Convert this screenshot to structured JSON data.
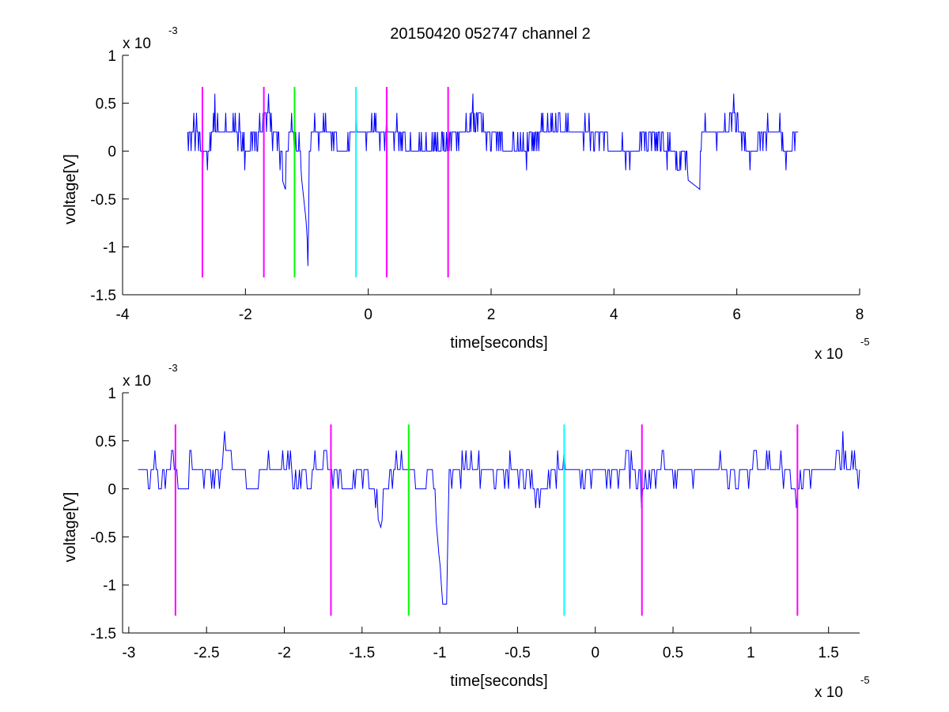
{
  "figure": {
    "title": "20150420 052747 channel 2",
    "background": "#ffffff"
  },
  "chart_data": [
    {
      "type": "line",
      "title": "20150420 052747 channel 2",
      "xlabel": "time[seconds]",
      "ylabel": "voltage[V]",
      "x_multiplier_base": "x 10",
      "x_multiplier_exp": "-5",
      "y_multiplier_base": "x 10",
      "y_multiplier_exp": "-3",
      "xlim": [
        -4,
        8
      ],
      "ylim": [
        -1.5,
        1
      ],
      "xticks": [
        -4,
        -2,
        0,
        2,
        4,
        6,
        8
      ],
      "xtick_labels": [
        "-4",
        "-2",
        "0",
        "2",
        "4",
        "6",
        "8"
      ],
      "yticks": [
        -1.5,
        -1,
        -0.5,
        0,
        0.5,
        1
      ],
      "ytick_labels": [
        "-1.5",
        "-1",
        "-0.5",
        "0",
        "0.5",
        "1"
      ],
      "grid": false,
      "series": [
        {
          "color": "#0000ff",
          "x_range": [
            -2.94,
            7.0
          ],
          "noise_levels": [
            0,
            0.2,
            0.4
          ],
          "y_points": [
            [
              -2.94,
              0
            ],
            [
              -2.88,
              0.2
            ],
            [
              -2.8,
              0.4
            ],
            [
              -2.72,
              -0.05
            ],
            [
              -2.62,
              -0.2
            ],
            [
              -2.5,
              0.6
            ],
            [
              -2.4,
              0.2
            ],
            [
              -2.1,
              0.4
            ],
            [
              -2.0,
              -0.1
            ],
            [
              -1.8,
              0.2
            ],
            [
              -1.62,
              0.6
            ],
            [
              -1.5,
              0.2
            ],
            [
              -1.4,
              -0.3
            ],
            [
              -1.35,
              -0.4
            ],
            [
              -1.25,
              0.4
            ],
            [
              -1.1,
              -0.2
            ],
            [
              -1.0,
              -0.8
            ],
            [
              -0.98,
              -1.2
            ],
            [
              -0.96,
              -0.2
            ],
            [
              -0.9,
              0.2
            ],
            [
              -0.7,
              0.4
            ],
            [
              -0.4,
              -0.2
            ],
            [
              -0.2,
              0.4
            ],
            [
              0,
              0.2
            ],
            [
              0.3,
              0.4
            ],
            [
              0.8,
              -0.2
            ],
            [
              1.45,
              0.2
            ],
            [
              1.7,
              0.6
            ],
            [
              2.0,
              0.2
            ],
            [
              2.4,
              -0.2
            ],
            [
              3.0,
              0.4
            ],
            [
              3.6,
              0.2
            ],
            [
              4.2,
              -0.2
            ],
            [
              4.6,
              0.2
            ],
            [
              5.0,
              -0.2
            ],
            [
              5.4,
              -0.4
            ],
            [
              5.43,
              0.2
            ],
            [
              5.8,
              0.2
            ],
            [
              5.95,
              0.6
            ],
            [
              6.1,
              0.2
            ],
            [
              6.18,
              -0.2
            ],
            [
              6.5,
              0.2
            ],
            [
              6.7,
              0.4
            ],
            [
              6.8,
              -0.2
            ],
            [
              7.0,
              0.2
            ]
          ]
        }
      ],
      "vertical_markers": [
        {
          "x": -2.7,
          "color": "#ff00ff"
        },
        {
          "x": -1.7,
          "color": "#ff00ff"
        },
        {
          "x": -1.2,
          "color": "#00ff00"
        },
        {
          "x": -0.2,
          "color": "#00ffff"
        },
        {
          "x": 0.3,
          "color": "#ff00ff"
        },
        {
          "x": 1.3,
          "color": "#ff00ff"
        }
      ],
      "marker_y_range": [
        -1.32,
        0.67
      ]
    },
    {
      "type": "line",
      "title": "",
      "xlabel": "time[seconds]",
      "ylabel": "voltage[V]",
      "x_multiplier_base": "x 10",
      "x_multiplier_exp": "-5",
      "y_multiplier_base": "x 10",
      "y_multiplier_exp": "-3",
      "xlim": [
        -3.04,
        1.7
      ],
      "ylim": [
        -1.5,
        1
      ],
      "xticks": [
        -3,
        -2.5,
        -2,
        -1.5,
        -1,
        -0.5,
        0,
        0.5,
        1,
        1.5
      ],
      "xtick_labels": [
        "-3",
        "-2.5",
        "-2",
        "-1.5",
        "-1",
        "-0.5",
        "0",
        "0.5",
        "1",
        "1.5"
      ],
      "yticks": [
        -1.5,
        -1,
        -0.5,
        0,
        0.5,
        1
      ],
      "ytick_labels": [
        "-1.5",
        "-1",
        "-0.5",
        "0",
        "0.5",
        "1"
      ],
      "grid": false,
      "series": [
        {
          "color": "#0000ff",
          "x_range": [
            -2.94,
            1.7
          ],
          "y_points": [
            [
              -2.94,
              0
            ],
            [
              -2.92,
              0.2
            ],
            [
              -2.9,
              0.05
            ],
            [
              -2.86,
              0.2
            ],
            [
              -2.83,
              0.4
            ],
            [
              -2.8,
              0.0
            ],
            [
              -2.75,
              0.2
            ],
            [
              -2.72,
              0.4
            ],
            [
              -2.67,
              -0.05
            ],
            [
              -2.63,
              -0.2
            ],
            [
              -2.6,
              0.4
            ],
            [
              -2.5,
              0.2
            ],
            [
              -2.43,
              0.0
            ],
            [
              -2.38,
              0.6
            ],
            [
              -2.3,
              0.2
            ],
            [
              -2.2,
              -0.2
            ],
            [
              -2.1,
              0.4
            ],
            [
              -1.95,
              0.2
            ],
            [
              -1.85,
              0.0
            ],
            [
              -1.8,
              0.4
            ],
            [
              -1.7,
              0.2
            ],
            [
              -1.6,
              -0.1
            ],
            [
              -1.5,
              0.2
            ],
            [
              -1.42,
              -0.2
            ],
            [
              -1.38,
              -0.4
            ],
            [
              -1.33,
              0.0
            ],
            [
              -1.25,
              0.4
            ],
            [
              -1.18,
              0.2
            ],
            [
              -1.12,
              -0.2
            ],
            [
              -1.05,
              0.2
            ],
            [
              -1.0,
              -0.8
            ],
            [
              -0.98,
              -1.2
            ],
            [
              -0.96,
              -1.2
            ],
            [
              -0.94,
              0.0
            ],
            [
              -0.88,
              0.2
            ],
            [
              -0.8,
              0.4
            ],
            [
              -0.7,
              0.2
            ],
            [
              -0.6,
              0.0
            ],
            [
              -0.55,
              0.4
            ],
            [
              -0.45,
              0.2
            ],
            [
              -0.35,
              -0.2
            ],
            [
              -0.25,
              0.2
            ],
            [
              -0.2,
              0.4
            ],
            [
              -0.1,
              0.0
            ],
            [
              0.0,
              0.2
            ],
            [
              0.1,
              0.0
            ],
            [
              0.2,
              0.4
            ],
            [
              0.3,
              -0.2
            ],
            [
              0.38,
              0.2
            ],
            [
              0.43,
              0.4
            ],
            [
              0.5,
              0.2
            ],
            [
              0.6,
              0.0
            ],
            [
              0.7,
              0.2
            ],
            [
              0.8,
              0.4
            ],
            [
              0.9,
              0.0
            ],
            [
              1.0,
              0.2
            ],
            [
              1.1,
              0.4
            ],
            [
              1.2,
              0.2
            ],
            [
              1.3,
              -0.1
            ],
            [
              1.4,
              0.2
            ],
            [
              1.5,
              0.2
            ],
            [
              1.55,
              0.4
            ],
            [
              1.59,
              0.6
            ],
            [
              1.63,
              0.2
            ],
            [
              1.67,
              0.4
            ],
            [
              1.7,
              0.0
            ]
          ]
        }
      ],
      "vertical_markers": [
        {
          "x": -2.7,
          "color": "#ff00ff"
        },
        {
          "x": -1.7,
          "color": "#ff00ff"
        },
        {
          "x": -1.2,
          "color": "#00ff00"
        },
        {
          "x": -0.2,
          "color": "#00ffff"
        },
        {
          "x": 0.3,
          "color": "#ff00ff"
        },
        {
          "x": 1.3,
          "color": "#ff00ff"
        }
      ],
      "marker_y_range": [
        -1.32,
        0.67
      ]
    }
  ]
}
